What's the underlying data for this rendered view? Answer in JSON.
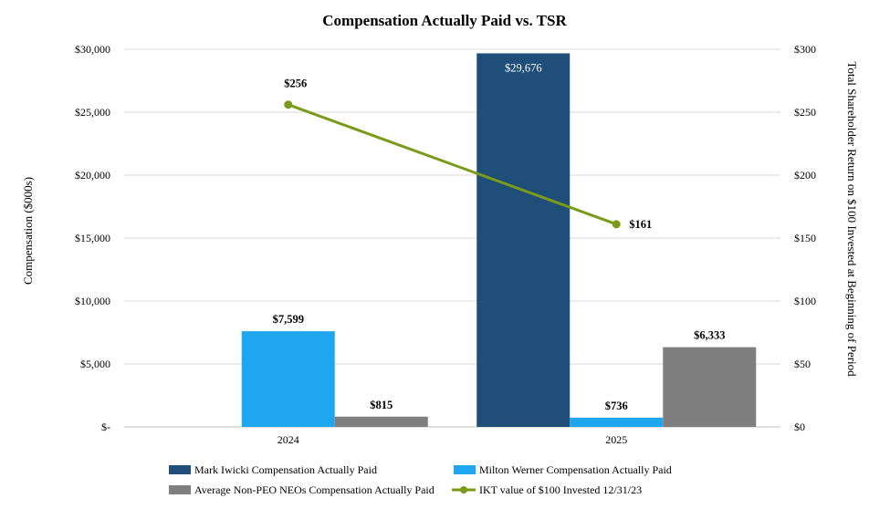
{
  "chart_data": {
    "type": "bar",
    "title": "Compensation Actually Paid vs. TSR",
    "categories": [
      "2024",
      "2025"
    ],
    "ylabel": "Compensation ($000s)",
    "y2label": "Total Shareholder Return on $100 Invested at Beginning of Period",
    "ylim": [
      0,
      30000
    ],
    "y2lim": [
      0,
      300
    ],
    "yticks": [
      "$-",
      "$5,000",
      "$10,000",
      "$15,000",
      "$20,000",
      "$25,000",
      "$30,000"
    ],
    "y2ticks": [
      "$0",
      "$50",
      "$100",
      "$150",
      "$200",
      "$250",
      "$300"
    ],
    "grid": true,
    "legend_position": "bottom",
    "series": [
      {
        "name": "Mark Iwicki Compensation Actually Paid",
        "type": "bar",
        "axis": "left",
        "color": "#1f4e79",
        "values": [
          null,
          29676
        ],
        "labels": [
          "",
          "$29,676"
        ]
      },
      {
        "name": "Milton Werner Compensation Actually Paid",
        "type": "bar",
        "axis": "left",
        "color": "#1ea7ef",
        "values": [
          7599,
          736
        ],
        "labels": [
          "$7,599",
          "$736"
        ]
      },
      {
        "name": "Average Non-PEO NEOs Compensation Actually Paid",
        "type": "bar",
        "axis": "left",
        "color": "#7f7f7f",
        "values": [
          815,
          6333
        ],
        "labels": [
          "$815",
          "$6,333"
        ]
      },
      {
        "name": "IKT value of $100 Invested 12/31/23",
        "type": "line",
        "axis": "right",
        "color": "#7a9a1a",
        "values": [
          256,
          161
        ],
        "labels": [
          "$256",
          "$161"
        ]
      }
    ]
  }
}
